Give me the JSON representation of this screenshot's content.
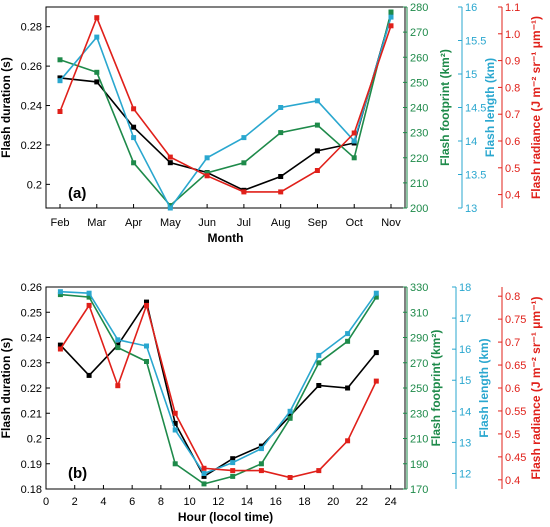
{
  "colors": {
    "black": "#000000",
    "green": "#1e8a4a",
    "blue": "#2aa7cf",
    "red": "#e0201a"
  },
  "chart_data": [
    {
      "type": "line",
      "panel_label": "(a)",
      "xlabel": "Month",
      "x_ticks": [
        "Feb",
        "Mar",
        "Apr",
        "May",
        "Jun",
        "Jul",
        "Aug",
        "Sep",
        "Oct",
        "Nov"
      ],
      "axes": {
        "left": {
          "label": "Flash duration (s)",
          "ylim": [
            0.188,
            0.29
          ],
          "ticks": [
            0.2,
            0.22,
            0.24,
            0.26,
            0.28
          ],
          "tick_labels": [
            "0.2",
            "0.22",
            "0.24",
            "0.26",
            "0.28"
          ]
        },
        "green": {
          "label": "Flash footprint (km²)",
          "ylim": [
            200,
            280
          ],
          "ticks": [
            200,
            210,
            220,
            230,
            240,
            250,
            260,
            270,
            280
          ],
          "tick_labels": [
            "200",
            "210",
            "220",
            "230",
            "240",
            "250",
            "260",
            "270",
            "280"
          ]
        },
        "blue": {
          "label": "Flash length (km)",
          "ylim": [
            13,
            16
          ],
          "ticks": [
            13,
            13.5,
            14,
            14.5,
            15,
            15.5,
            16
          ],
          "tick_labels": [
            "13",
            "13.5",
            "14",
            "14.5",
            "15",
            "15.5",
            "16"
          ]
        },
        "red": {
          "label": "Flash radiance (J m⁻² sr⁻¹ μm⁻¹)",
          "ylim": [
            0.35,
            1.1
          ],
          "ticks": [
            0.4,
            0.5,
            0.6,
            0.7,
            0.8,
            0.9,
            1.0,
            1.1
          ],
          "tick_labels": [
            "0.4",
            "0.5",
            "0.6",
            "0.7",
            "0.8",
            "0.9",
            "1.0",
            "1.1"
          ]
        }
      },
      "series": [
        {
          "axis": "left",
          "color": "black",
          "values": [
            0.254,
            0.252,
            0.229,
            0.211,
            0.206,
            0.197,
            0.204,
            0.217,
            0.221,
            0.286
          ]
        },
        {
          "axis": "green",
          "color": "green",
          "values": [
            259,
            254,
            218,
            201,
            214,
            218,
            230,
            233,
            220,
            278
          ]
        },
        {
          "axis": "blue",
          "color": "blue",
          "values": [
            14.9,
            15.55,
            14.05,
            13.0,
            13.75,
            14.05,
            14.5,
            14.6,
            14.0,
            15.85
          ]
        },
        {
          "axis": "red",
          "color": "red",
          "values": [
            0.71,
            1.06,
            0.72,
            0.54,
            0.47,
            0.41,
            0.41,
            0.49,
            0.63,
            1.03
          ]
        }
      ]
    },
    {
      "type": "line",
      "panel_label": "(b)",
      "xlabel": "Hour (locol time)",
      "x_range": [
        0,
        25
      ],
      "x_ticks": [
        0,
        2,
        4,
        6,
        8,
        10,
        12,
        14,
        16,
        18,
        20,
        22,
        24
      ],
      "x": [
        1,
        3,
        5,
        7,
        9,
        11,
        13,
        15,
        17,
        19,
        21,
        23
      ],
      "axes": {
        "left": {
          "label": "Flash duration (s)",
          "ylim": [
            0.18,
            0.26
          ],
          "ticks": [
            0.18,
            0.19,
            0.2,
            0.21,
            0.22,
            0.23,
            0.24,
            0.25,
            0.26
          ],
          "tick_labels": [
            "0.18",
            "0.19",
            "0.2",
            "0.21",
            "0.22",
            "0.23",
            "0.24",
            "0.25",
            "0.26"
          ]
        },
        "green": {
          "label": "Flash footprint (km²)",
          "ylim": [
            170,
            330
          ],
          "ticks": [
            170,
            190,
            210,
            230,
            250,
            270,
            290,
            310,
            330
          ],
          "tick_labels": [
            "170",
            "190",
            "210",
            "230",
            "250",
            "270",
            "290",
            "310",
            "330"
          ]
        },
        "blue": {
          "label": "Flash length (km)",
          "ylim": [
            11.5,
            18
          ],
          "ticks": [
            12,
            13,
            14,
            15,
            16,
            17,
            18
          ],
          "tick_labels": [
            "12",
            "13",
            "14",
            "15",
            "16",
            "17",
            "18"
          ]
        },
        "red": {
          "label": "Flash radiance (J m⁻² sr⁻¹ μm⁻¹)",
          "ylim": [
            0.38,
            0.82
          ],
          "ticks": [
            0.4,
            0.45,
            0.5,
            0.55,
            0.6,
            0.65,
            0.7,
            0.75,
            0.8
          ],
          "tick_labels": [
            "0.4",
            "0.45",
            "0.5",
            "0.55",
            "0.6",
            "0.65",
            "0.7",
            "0.75",
            "0.8"
          ]
        }
      },
      "series": [
        {
          "axis": "left",
          "color": "black",
          "values": [
            0.237,
            0.225,
            0.237,
            0.254,
            0.206,
            0.185,
            0.192,
            0.197,
            0.209,
            0.221,
            0.22,
            0.234
          ]
        },
        {
          "axis": "green",
          "color": "green",
          "values": [
            324,
            322,
            282,
            271,
            190,
            174,
            180,
            190,
            226,
            270,
            287,
            322
          ]
        },
        {
          "axis": "blue",
          "color": "blue",
          "values": [
            17.85,
            17.8,
            16.3,
            16.1,
            13.4,
            12.0,
            12.35,
            12.8,
            14.0,
            15.8,
            16.5,
            17.8
          ]
        },
        {
          "axis": "red",
          "color": "red",
          "values": [
            0.685,
            0.78,
            0.605,
            0.78,
            0.545,
            0.425,
            0.42,
            0.42,
            0.405,
            0.42,
            0.485,
            0.615
          ]
        }
      ]
    }
  ]
}
